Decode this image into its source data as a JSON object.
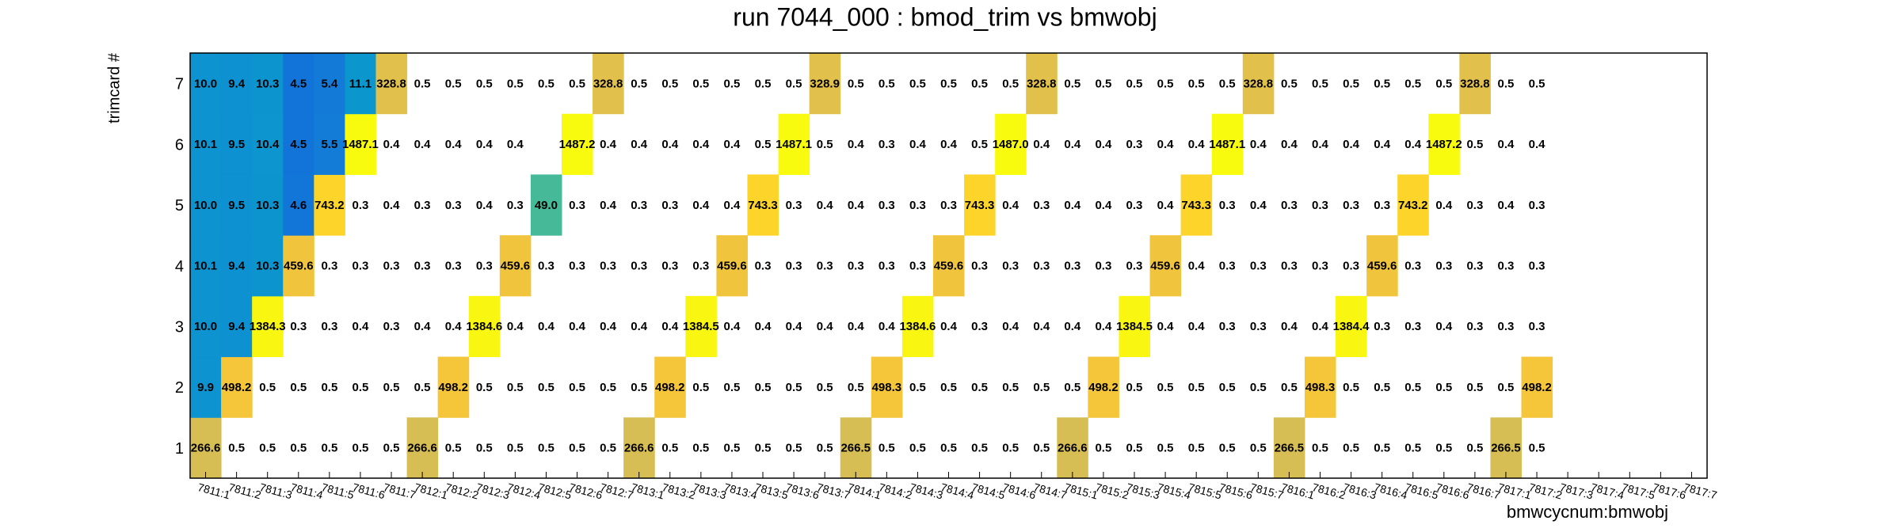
{
  "chart_data": {
    "type": "heatmap",
    "title": "run 7044_000 : bmod_trim vs bmwobj",
    "xlabel": "bmwcycnum:bmwobj",
    "ylabel": "trimcard #",
    "log_z": true,
    "palette": [
      "#352a87",
      "#0f5cdd",
      "#1481d6",
      "#06a4ca",
      "#2eb7a4",
      "#87bf77",
      "#d1bb59",
      "#fec832",
      "#f9fb0e"
    ],
    "x": [
      "7811:1",
      "7811:2",
      "7811:3",
      "7811:4",
      "7811:5",
      "7811:6",
      "7811:7",
      "7812:1",
      "7812:2",
      "7812:3",
      "7812:4",
      "7812:5",
      "7812:6",
      "7812:7",
      "7813:1",
      "7813:2",
      "7813:3",
      "7813:4",
      "7813:5",
      "7813:6",
      "7813:7",
      "7814:1",
      "7814:2",
      "7814:3",
      "7814:4",
      "7814:5",
      "7814:6",
      "7814:7",
      "7815:1",
      "7815:2",
      "7815:3",
      "7815:4",
      "7815:5",
      "7815:6",
      "7815:7",
      "7816:1",
      "7816:2",
      "7816:3",
      "7816:4",
      "7816:5",
      "7816:6",
      "7816:7",
      "7817:1",
      "7817:2",
      "7817:3",
      "7817:4",
      "7817:5",
      "7817:6",
      "7817:7"
    ],
    "y": [
      1,
      2,
      3,
      4,
      5,
      6,
      7
    ],
    "values": [
      [
        266.6,
        0.5,
        0.5,
        0.5,
        0.5,
        0.5,
        0.5,
        266.6,
        0.5,
        0.5,
        0.5,
        0.5,
        0.5,
        0.5,
        266.6,
        0.5,
        0.5,
        0.5,
        0.5,
        0.5,
        0.5,
        266.5,
        0.5,
        0.5,
        0.5,
        0.5,
        0.5,
        0.5,
        266.6,
        0.5,
        0.5,
        0.5,
        0.5,
        0.5,
        0.5,
        266.5,
        0.5,
        0.5,
        0.5,
        0.5,
        0.5,
        0.5,
        266.5,
        0.5,
        null,
        null,
        null,
        null,
        null
      ],
      [
        9.9,
        498.2,
        0.5,
        0.5,
        0.5,
        0.5,
        0.5,
        0.5,
        498.2,
        0.5,
        0.5,
        0.5,
        0.5,
        0.5,
        0.5,
        498.2,
        0.5,
        0.5,
        0.5,
        0.5,
        0.5,
        0.5,
        498.3,
        0.5,
        0.5,
        0.5,
        0.5,
        0.5,
        0.5,
        498.2,
        0.5,
        0.5,
        0.5,
        0.5,
        0.5,
        0.5,
        498.3,
        0.5,
        0.5,
        0.5,
        0.5,
        0.5,
        0.5,
        498.2,
        null,
        null,
        null,
        null,
        null
      ],
      [
        10.0,
        9.4,
        1384.3,
        0.3,
        0.3,
        0.4,
        0.3,
        0.4,
        0.4,
        1384.6,
        0.4,
        0.4,
        0.4,
        0.4,
        0.4,
        0.4,
        1384.5,
        0.4,
        0.4,
        0.4,
        0.4,
        0.4,
        0.4,
        1384.6,
        0.4,
        0.3,
        0.4,
        0.4,
        0.4,
        0.4,
        1384.5,
        0.4,
        0.4,
        0.3,
        0.3,
        0.4,
        0.4,
        1384.4,
        0.3,
        0.3,
        0.4,
        0.3,
        0.3,
        0.3,
        null,
        null,
        null,
        null,
        null
      ],
      [
        10.1,
        9.4,
        10.3,
        459.6,
        0.3,
        0.3,
        0.3,
        0.3,
        0.3,
        0.3,
        459.6,
        0.3,
        0.3,
        0.3,
        0.3,
        0.3,
        0.3,
        459.6,
        0.3,
        0.3,
        0.3,
        0.3,
        0.3,
        0.3,
        459.6,
        0.3,
        0.3,
        0.3,
        0.3,
        0.3,
        0.3,
        459.6,
        0.4,
        0.3,
        0.3,
        0.3,
        0.3,
        0.3,
        459.6,
        0.3,
        0.3,
        0.3,
        0.3,
        0.3,
        null,
        null,
        null,
        null,
        null
      ],
      [
        10.0,
        9.5,
        10.3,
        4.6,
        743.2,
        0.3,
        0.4,
        0.3,
        0.3,
        0.4,
        0.3,
        49.0,
        0.3,
        0.4,
        0.3,
        0.3,
        0.4,
        0.4,
        743.3,
        0.3,
        0.4,
        0.4,
        0.3,
        0.3,
        0.3,
        743.3,
        0.4,
        0.3,
        0.4,
        0.4,
        0.3,
        0.4,
        743.3,
        0.3,
        0.4,
        0.3,
        0.3,
        0.3,
        0.3,
        743.2,
        0.4,
        0.3,
        0.4,
        0.3,
        null,
        null,
        null,
        null,
        null
      ],
      [
        10.1,
        9.5,
        10.4,
        4.5,
        5.5,
        1487.1,
        0.4,
        0.4,
        0.4,
        0.4,
        0.4,
        null,
        1487.2,
        0.4,
        0.4,
        0.4,
        0.4,
        0.4,
        0.5,
        1487.1,
        0.5,
        0.4,
        0.3,
        0.4,
        0.4,
        0.5,
        1487.0,
        0.4,
        0.4,
        0.4,
        0.3,
        0.4,
        0.4,
        1487.1,
        0.4,
        0.4,
        0.4,
        0.4,
        0.4,
        0.4,
        1487.2,
        0.5,
        0.4,
        0.4,
        null,
        null,
        null,
        null,
        null
      ],
      [
        10.0,
        9.4,
        10.3,
        4.5,
        5.4,
        11.1,
        328.8,
        0.5,
        0.5,
        0.5,
        0.5,
        0.5,
        0.5,
        328.8,
        0.5,
        0.5,
        0.5,
        0.5,
        0.5,
        0.5,
        328.9,
        0.5,
        0.5,
        0.5,
        0.5,
        0.5,
        0.5,
        328.8,
        0.5,
        0.5,
        0.5,
        0.5,
        0.5,
        0.5,
        328.8,
        0.5,
        0.5,
        0.5,
        0.5,
        0.5,
        0.5,
        328.8,
        0.5,
        0.5,
        null,
        null,
        null,
        null,
        null
      ]
    ],
    "value_labels": [
      [
        "266.6",
        "0.5",
        "0.5",
        "0.5",
        "0.5",
        "0.5",
        "0.5",
        "266.6",
        "0.5",
        "0.5",
        "0.5",
        "0.5",
        "0.5",
        "0.5",
        "266.6",
        "0.5",
        "0.5",
        "0.5",
        "0.5",
        "0.5",
        "0.5",
        "266.5",
        "0.5",
        "0.5",
        "0.5",
        "0.5",
        "0.5",
        "0.5",
        "266.6",
        "0.5",
        "0.5",
        "0.5",
        "0.5",
        "0.5",
        "0.5",
        "266.5",
        "0.5",
        "0.5",
        "0.5",
        "0.5",
        "0.5",
        "0.5",
        "266.5",
        "0.5",
        null,
        null,
        null,
        null,
        null
      ],
      [
        "9.9",
        "498.2",
        "0.5",
        "0.5",
        "0.5",
        "0.5",
        "0.5",
        "0.5",
        "498.2",
        "0.5",
        "0.5",
        "0.5",
        "0.5",
        "0.5",
        "0.5",
        "498.2",
        "0.5",
        "0.5",
        "0.5",
        "0.5",
        "0.5",
        "0.5",
        "498.3",
        "0.5",
        "0.5",
        "0.5",
        "0.5",
        "0.5",
        "0.5",
        "498.2",
        "0.5",
        "0.5",
        "0.5",
        "0.5",
        "0.5",
        "0.5",
        "498.3",
        "0.5",
        "0.5",
        "0.5",
        "0.5",
        "0.5",
        "0.5",
        "498.2",
        null,
        null,
        null,
        null,
        null
      ],
      [
        "10.0",
        "9.4",
        "1384.3",
        "0.3",
        "0.3",
        "0.4",
        "0.3",
        "0.4",
        "0.4",
        "1384.6",
        "0.4",
        "0.4",
        "0.4",
        "0.4",
        "0.4",
        "0.4",
        "1384.5",
        "0.4",
        "0.4",
        "0.4",
        "0.4",
        "0.4",
        "0.4",
        "1384.6",
        "0.4",
        "0.3",
        "0.4",
        "0.4",
        "0.4",
        "0.4",
        "1384.5",
        "0.4",
        "0.4",
        "0.3",
        "0.3",
        "0.4",
        "0.4",
        "1384.4",
        "0.3",
        "0.3",
        "0.4",
        "0.3",
        "0.3",
        "0.3",
        null,
        null,
        null,
        null,
        null
      ],
      [
        "10.1",
        "9.4",
        "10.3",
        "459.6",
        "0.3",
        "0.3",
        "0.3",
        "0.3",
        "0.3",
        "0.3",
        "459.6",
        "0.3",
        "0.3",
        "0.3",
        "0.3",
        "0.3",
        "0.3",
        "459.6",
        "0.3",
        "0.3",
        "0.3",
        "0.3",
        "0.3",
        "0.3",
        "459.6",
        "0.3",
        "0.3",
        "0.3",
        "0.3",
        "0.3",
        "0.3",
        "459.6",
        "0.4",
        "0.3",
        "0.3",
        "0.3",
        "0.3",
        "0.3",
        "459.6",
        "0.3",
        "0.3",
        "0.3",
        "0.3",
        "0.3",
        null,
        null,
        null,
        null,
        null
      ],
      [
        "10.0",
        "9.5",
        "10.3",
        "4.6",
        "743.2",
        "0.3",
        "0.4",
        "0.3",
        "0.3",
        "0.4",
        "0.3",
        "49.0",
        "0.3",
        "0.4",
        "0.3",
        "0.3",
        "0.4",
        "0.4",
        "743.3",
        "0.3",
        "0.4",
        "0.4",
        "0.3",
        "0.3",
        "0.3",
        "743.3",
        "0.4",
        "0.3",
        "0.4",
        "0.4",
        "0.3",
        "0.4",
        "743.3",
        "0.3",
        "0.4",
        "0.3",
        "0.3",
        "0.3",
        "0.3",
        "743.2",
        "0.4",
        "0.3",
        "0.4",
        "0.3",
        null,
        null,
        null,
        null,
        null
      ],
      [
        "10.1",
        "9.5",
        "10.4",
        "4.5",
        "5.5",
        "1487.1",
        "0.4",
        "0.4",
        "0.4",
        "0.4",
        "0.4",
        null,
        "1487.2",
        "0.4",
        "0.4",
        "0.4",
        "0.4",
        "0.4",
        "0.5",
        "1487.1",
        "0.5",
        "0.4",
        "0.3",
        "0.4",
        "0.4",
        "0.5",
        "1487.0",
        "0.4",
        "0.4",
        "0.4",
        "0.3",
        "0.4",
        "0.4",
        "1487.1",
        "0.4",
        "0.4",
        "0.4",
        "0.4",
        "0.4",
        "0.4",
        "1487.2",
        "0.5",
        "0.4",
        "0.4",
        null,
        null,
        null,
        null,
        null
      ],
      [
        "10.0",
        "9.4",
        "10.3",
        "4.5",
        "5.4",
        "11.1",
        "328.8",
        "0.5",
        "0.5",
        "0.5",
        "0.5",
        "0.5",
        "0.5",
        "328.8",
        "0.5",
        "0.5",
        "0.5",
        "0.5",
        "0.5",
        "0.5",
        "328.9",
        "0.5",
        "0.5",
        "0.5",
        "0.5",
        "0.5",
        "0.5",
        "328.8",
        "0.5",
        "0.5",
        "0.5",
        "0.5",
        "0.5",
        "0.5",
        "328.8",
        "0.5",
        "0.5",
        "0.5",
        "0.5",
        "0.5",
        "0.5",
        "328.8",
        "0.5",
        "0.5",
        null,
        null,
        null,
        null,
        null
      ]
    ]
  }
}
